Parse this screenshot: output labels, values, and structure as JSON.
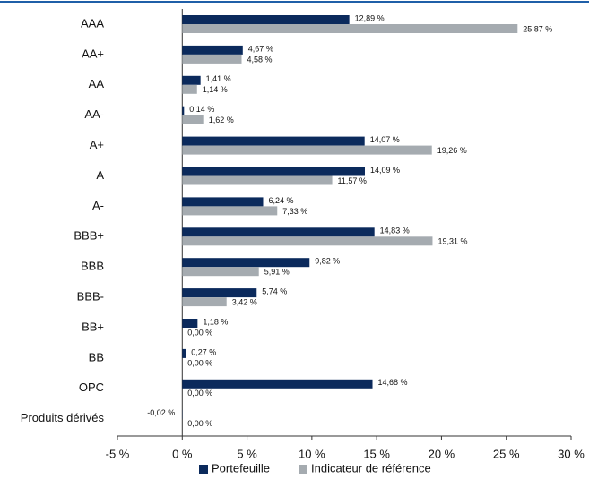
{
  "chart_data": {
    "type": "bar",
    "orientation": "horizontal",
    "categories": [
      "AAA",
      "AA+",
      "AA",
      "AA-",
      "A+",
      "A",
      "A-",
      "BBB+",
      "BBB",
      "BBB-",
      "BB+",
      "BB",
      "OPC",
      "Produits dérivés"
    ],
    "series": [
      {
        "name": "Portefeuille",
        "color": "#0b2a5c",
        "values": [
          12.89,
          4.67,
          1.41,
          0.14,
          14.07,
          14.09,
          6.24,
          14.83,
          9.82,
          5.74,
          1.18,
          0.27,
          14.68,
          -0.02
        ],
        "value_labels": [
          "12,89 %",
          "4,67 %",
          "1,41 %",
          "0,14 %",
          "14,07 %",
          "14,09 %",
          "6,24 %",
          "14,83 %",
          "9,82 %",
          "5,74 %",
          "1,18 %",
          "0,27 %",
          "14,68 %",
          "-0,02 %"
        ]
      },
      {
        "name": "Indicateur de référence",
        "color": "#a5abb0",
        "values": [
          25.87,
          4.58,
          1.14,
          1.62,
          19.26,
          11.57,
          7.33,
          19.31,
          5.91,
          3.42,
          0.0,
          0.0,
          0.0,
          0.0
        ],
        "value_labels": [
          "25,87 %",
          "4,58 %",
          "1,14 %",
          "1,62 %",
          "19,26 %",
          "11,57 %",
          "7,33 %",
          "19,31 %",
          "5,91 %",
          "3,42 %",
          "0,00 %",
          "0,00 %",
          "0,00 %",
          "0,00 %"
        ]
      }
    ],
    "xlim": [
      -5,
      30
    ],
    "xticks": [
      {
        "value": -5,
        "label": "-5 %"
      },
      {
        "value": 0,
        "label": "0 %"
      },
      {
        "value": 5,
        "label": "5 %"
      },
      {
        "value": 10,
        "label": "10 %"
      },
      {
        "value": 15,
        "label": "15 %"
      },
      {
        "value": 20,
        "label": "20 %"
      },
      {
        "value": 25,
        "label": "25 %"
      },
      {
        "value": 30,
        "label": "30 %"
      }
    ],
    "legend": "bottom"
  }
}
